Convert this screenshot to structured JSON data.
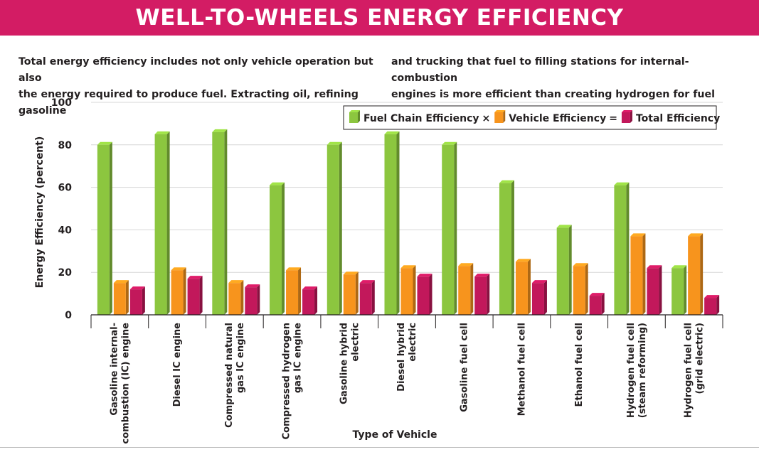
{
  "title": "WELL-TO-WHEELS ENERGY EFFICIENCY",
  "intro": {
    "left": "Total energy efficiency includes not only vehicle operation but also\nthe energy required to produce fuel. Extracting oil, refining gasoline",
    "right": "and trucking that fuel to filling stations for internal-combustion\nengines is more efficient than creating hydrogen for fuel cells."
  },
  "colors": {
    "banner": "#d31c64",
    "fuel_chain": "#8cc63f",
    "vehicle": "#f7941d",
    "total": "#c2185b"
  },
  "chart_data": {
    "type": "bar",
    "title": "WELL-TO-WHEELS ENERGY EFFICIENCY",
    "xlabel": "Type of Vehicle",
    "ylabel": "Energy Efficiency (percent)",
    "ylim": [
      0,
      100
    ],
    "yticks": [
      "0",
      "20",
      "40",
      "60",
      "80",
      "100"
    ],
    "grid": true,
    "legend_position": "top-right",
    "legend": [
      {
        "label": "Fuel Chain Efficiency",
        "operator": "×"
      },
      {
        "label": "Vehicle Efficiency",
        "operator": "="
      },
      {
        "label": "Total Efficiency",
        "operator": ""
      }
    ],
    "categories": [
      [
        "Gasoline internal-",
        "combustion (IC) engine"
      ],
      [
        "Diesel IC engine"
      ],
      [
        "Compressed natural",
        "gas IC engine"
      ],
      [
        "Compressed hydrogen",
        "gas IC engine"
      ],
      [
        "Gasoline hybrid",
        "electric"
      ],
      [
        "Diesel hybrid",
        "electric"
      ],
      [
        "Gasoline fuel cell"
      ],
      [
        "Methanol fuel cell"
      ],
      [
        "Ethanol fuel cell"
      ],
      [
        "Hydrogen fuel cell",
        "(steam reforming)"
      ],
      [
        "Hydrogen fuel cell",
        "(grid electric)"
      ]
    ],
    "series": [
      {
        "name": "Fuel Chain Efficiency",
        "values": [
          80,
          85,
          86,
          61,
          80,
          85,
          80,
          62,
          41,
          61,
          22
        ]
      },
      {
        "name": "Vehicle Efficiency",
        "values": [
          15,
          21,
          15,
          21,
          19,
          22,
          23,
          25,
          23,
          37,
          37
        ]
      },
      {
        "name": "Total Efficiency",
        "values": [
          12,
          17,
          13,
          12,
          15,
          18,
          18,
          15,
          9,
          22,
          8
        ]
      }
    ]
  }
}
